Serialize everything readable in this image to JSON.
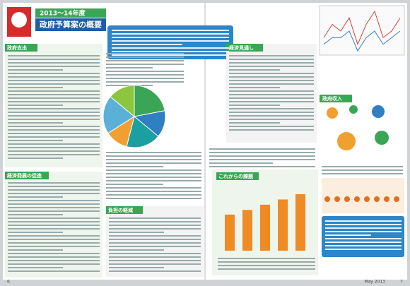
{
  "header": {
    "year": "2013～14年度",
    "title": "政府予算案の概要"
  },
  "sections": {
    "spending": "政府支出",
    "outlook": "経済見通し",
    "revenue": "政府収入",
    "growth": "経済発展の促進",
    "relief": "負担の軽減",
    "challenges": "これからの課題"
  },
  "pie": {
    "values": [
      22,
      14,
      18,
      12,
      20,
      14
    ],
    "colors": [
      "#3aa655",
      "#2f7fc1",
      "#1c9fa0",
      "#f0a030",
      "#5bb0d8",
      "#8cc63f"
    ]
  },
  "line_chart": {
    "series": [
      {
        "color": "#d94040",
        "values": [
          3,
          5,
          4,
          6,
          2,
          5,
          7,
          3,
          4,
          6
        ]
      },
      {
        "color": "#3a7fc1",
        "values": [
          2,
          3,
          3,
          4,
          1,
          3,
          4,
          2,
          3,
          4
        ]
      }
    ]
  },
  "bar_chart": {
    "color": "#f08a24",
    "values": [
      55,
      62,
      70,
      78,
      86
    ]
  },
  "footer": {
    "left_page": "6",
    "issue": "May 2013",
    "right_page": "7"
  }
}
